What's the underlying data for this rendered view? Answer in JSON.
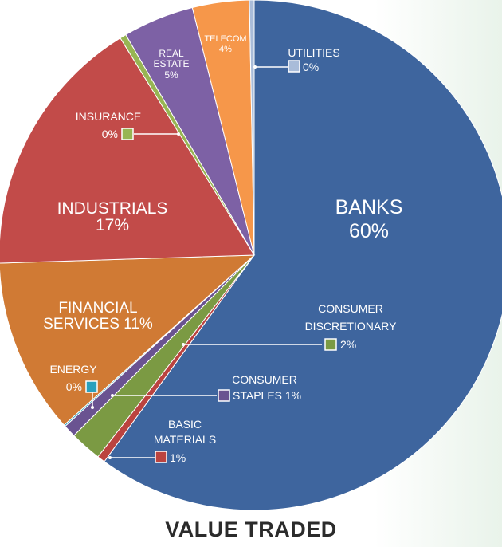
{
  "chart_data": {
    "type": "pie",
    "title": "VALUE TRADED",
    "slices": [
      {
        "label": "BANKS",
        "value": 60,
        "value_label": "60%",
        "color": "#3e659e"
      },
      {
        "label": "BASIC MATERIALS",
        "value": 0.5,
        "value_label": "1%",
        "color": "#bb433f"
      },
      {
        "label": "CONSUMER DISCRETIONARY",
        "value": 2,
        "value_label": "2%",
        "color": "#7b9a43"
      },
      {
        "label": "CONSUMER STAPLES",
        "value": 0.8,
        "value_label": "1%",
        "color": "#6a5391"
      },
      {
        "label": "ENERGY",
        "value": 0.1,
        "value_label": "0%",
        "color": "#2aa0bd"
      },
      {
        "label": "FINANCIAL SERVICES",
        "value": 11.1,
        "value_label": "11%",
        "color": "#d07a34"
      },
      {
        "label": "INDUSTRIALS",
        "value": 16.7,
        "value_label": "17%",
        "color": "#c24b49"
      },
      {
        "label": "INSURANCE",
        "value": 0.4,
        "value_label": "0%",
        "color": "#97b553"
      },
      {
        "label": "REAL ESTATE",
        "value": 4.5,
        "value_label": "5%",
        "color": "#7d61a5"
      },
      {
        "label": "TELECOM",
        "value": 3.6,
        "value_label": "4%",
        "color": "#f6974a"
      },
      {
        "label": "UTILITIES",
        "value": 0.3,
        "value_label": "0%",
        "color": "#a9bcd9"
      }
    ]
  },
  "labels": {
    "banks": {
      "l1": "BANKS",
      "l2": "60%"
    },
    "industrials": {
      "l1": "INDUSTRIALS",
      "l2": "17%"
    },
    "financial": {
      "l1": "FINANCIAL",
      "l2": "SERVICES 11%"
    },
    "real_estate": {
      "l1": "REAL",
      "l2": "ESTATE",
      "l3": "5%"
    },
    "telecom": {
      "l1": "TELECOM",
      "l2": "4%"
    },
    "utilities": {
      "l1": "UTILITIES",
      "l2": "0%"
    },
    "insurance": {
      "l1": "INSURANCE",
      "l2": "0%"
    },
    "cons_disc": {
      "l1": "CONSUMER",
      "l2": "DISCRETIONARY",
      "l3": "2%"
    },
    "cons_staples": {
      "l1": "CONSUMER",
      "l2": "STAPLES 1%"
    },
    "energy": {
      "l1": "ENERGY",
      "l2": "0%"
    },
    "basic": {
      "l1": "BASIC",
      "l2": "MATERIALS",
      "l3": "1%"
    }
  }
}
